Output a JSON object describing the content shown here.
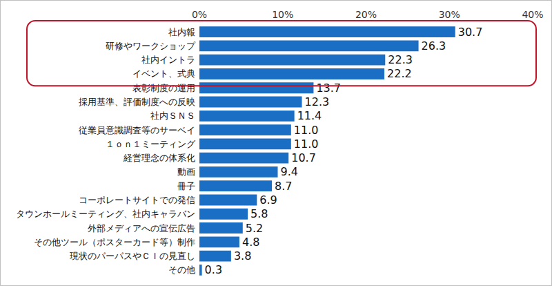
{
  "chart_data": {
    "type": "bar",
    "orientation": "horizontal",
    "categories": [
      "社内報",
      "研修やワークショップ",
      "社内イントラ",
      "イベント、式典",
      "表彰制度の運用",
      "採用基準、評価制度への反映",
      "社内ＳＮＳ",
      "従業員意識調査等のサーベイ",
      "１ｏｎ１ミーティング",
      "経営理念の体系化",
      "動画",
      "冊子",
      "コーポレートサイトでの発信",
      "タウンホールミーティング、社内キャラバン",
      "外部メディアへの宣伝広告",
      "その他ツール（ポスターカード等）制作",
      "現状のパーパスやＣＩの見直し",
      "その他"
    ],
    "values": [
      30.7,
      26.3,
      22.3,
      22.2,
      13.7,
      12.3,
      11.4,
      11.0,
      11.0,
      10.7,
      9.4,
      8.7,
      6.9,
      5.8,
      5.2,
      4.8,
      3.8,
      0.3
    ],
    "value_labels": [
      "30.7",
      "26.3",
      "22.3",
      "22.2",
      "13.7",
      "12.3",
      "11.4",
      "11.0",
      "11.0",
      "10.7",
      "9.4",
      "8.7",
      "6.9",
      "5.8",
      "5.2",
      "4.8",
      "3.8",
      "0.3"
    ],
    "color": "#1a6fc4",
    "xlim": [
      0,
      40
    ],
    "xticks": [
      {
        "value": 0,
        "label": "0%"
      },
      {
        "value": 10,
        "label": "10%"
      },
      {
        "value": 20,
        "label": "20%"
      },
      {
        "value": 30,
        "label": "30%"
      },
      {
        "value": 40,
        "label": "40%"
      }
    ],
    "grid": false,
    "data_labels": true
  }
}
